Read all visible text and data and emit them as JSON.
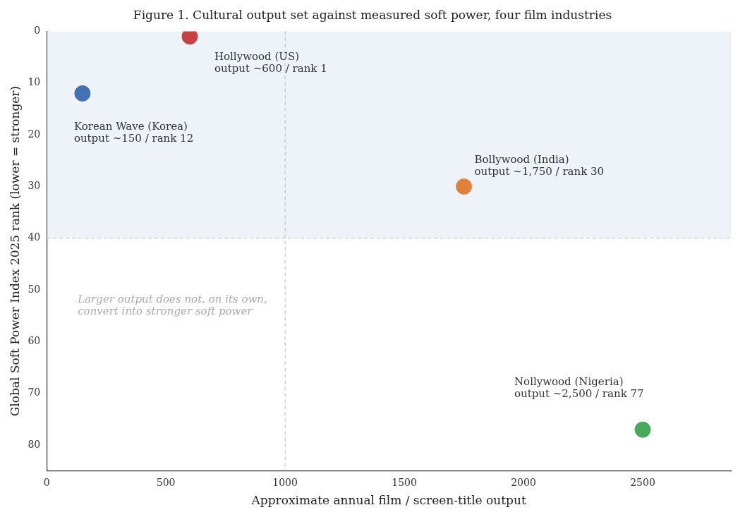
{
  "chart_data": {
    "type": "scatter",
    "title": "Figure 1. Cultural output set against measured soft power, four film industries",
    "xlabel": "Approximate annual film / screen-title output",
    "ylabel": "Global Soft Power Index 2025 rank (lower = stronger)",
    "x": [
      600,
      150,
      1750,
      2500
    ],
    "values": [
      1,
      12,
      30,
      77
    ],
    "colors": [
      "#c84141",
      "#4470b4",
      "#e0803c",
      "#4aa85a"
    ],
    "xlim": [
      0,
      2870
    ],
    "xticks": [
      0,
      500,
      1000,
      1500,
      2000,
      2500
    ],
    "ylim": [
      85,
      0
    ],
    "yticks": [
      0,
      10,
      20,
      30,
      40,
      50,
      60,
      70,
      80
    ],
    "bands": [
      {
        "axis": "y",
        "from": 0,
        "to": 40,
        "color": "#eef3fa"
      }
    ],
    "ref_lines": [
      {
        "axis": "x",
        "value": 1000,
        "color": "#bbbbbb",
        "line_style": "dashed"
      },
      {
        "axis": "y",
        "value": 40,
        "color": "#bbbbbb",
        "line_style": "dashed"
      }
    ],
    "annotations": [
      {
        "text": "Hollywood (US)\noutput ~600 / rank 1",
        "x": 600,
        "y": 1
      },
      {
        "text": "Korean Wave (Korea)\noutput ~150 / rank 12",
        "x": 150,
        "y": 12
      },
      {
        "text": "Bollywood (India)\noutput ~1,750 / rank 30",
        "x": 1750,
        "y": 30
      },
      {
        "text": "Nollywood (Nigeria)\noutput ~2,500 / rank 77",
        "x": 2500,
        "y": 77
      },
      "Larger output does not, on its own,\nconvert into stronger soft power"
    ],
    "grid": false,
    "legend": false,
    "marker": "circle"
  }
}
